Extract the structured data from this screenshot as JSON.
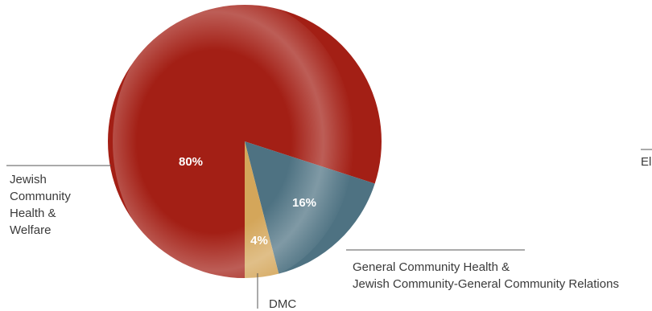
{
  "chart_data": {
    "type": "pie",
    "title": "",
    "slices": [
      {
        "name": "Jewish Community Health & Welfare",
        "label_lines": [
          "Jewish",
          "Community",
          "Health &",
          "Welfare"
        ],
        "value": 80,
        "value_label": "80%",
        "color": "#a31f15"
      },
      {
        "name": "General Community Health & Jewish Community-General Community Relations",
        "label_lines": [
          "General Community Health &",
          "Jewish Community-General Community Relations"
        ],
        "value": 16,
        "value_label": "16%",
        "color": "#4e7282"
      },
      {
        "name": "DMC",
        "label_lines": [
          "DMC"
        ],
        "value": 4,
        "value_label": "4%",
        "color": "#d4a65a"
      }
    ],
    "partial_label": "El",
    "legend": "none"
  }
}
